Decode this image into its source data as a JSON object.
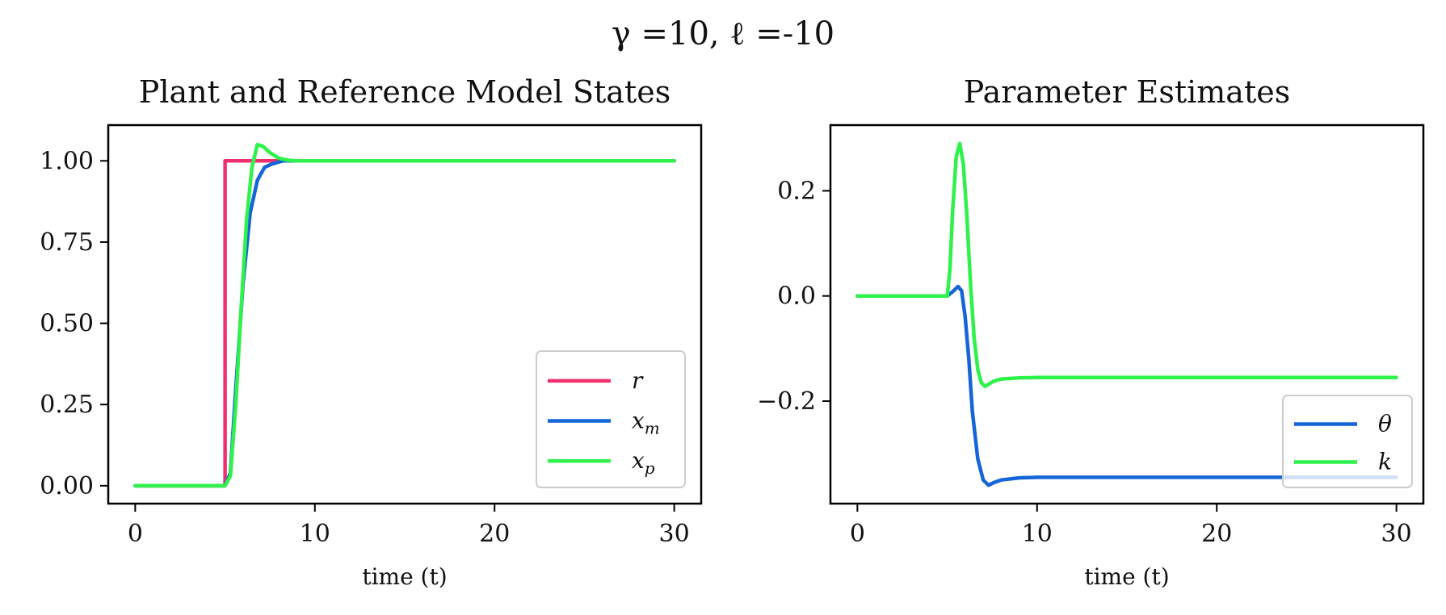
{
  "figure": {
    "suptitle": "γ =10, ℓ =-10"
  },
  "chart_data": [
    {
      "type": "line",
      "title": "Plant and Reference Model States",
      "xlabel": "time (t)",
      "ylabel": "",
      "xlim": [
        -1.5,
        31.5
      ],
      "ylim": [
        -0.055,
        1.11
      ],
      "xticks": [
        0,
        10,
        20,
        30
      ],
      "xtick_labels": [
        "0",
        "10",
        "20",
        "30"
      ],
      "yticks": [
        0.0,
        0.25,
        0.5,
        0.75,
        1.0
      ],
      "ytick_labels": [
        "0.00",
        "0.25",
        "0.50",
        "0.75",
        "1.00"
      ],
      "grid": false,
      "legend_position": "lower-right",
      "series": [
        {
          "name": "r",
          "color": "#f0306e",
          "x": [
            0,
            5,
            5,
            30
          ],
          "y": [
            0,
            0,
            1,
            1
          ]
        },
        {
          "name": "x_m",
          "color": "#1565d8",
          "x": [
            0,
            5,
            5.3,
            5.6,
            6.0,
            6.4,
            6.8,
            7.2,
            7.6,
            8.2,
            9.0,
            10,
            15,
            20,
            25,
            30
          ],
          "y": [
            0,
            0,
            0.04,
            0.3,
            0.62,
            0.84,
            0.94,
            0.98,
            0.99,
            1.0,
            1.0,
            1.0,
            1.0,
            1.0,
            1.0,
            1.0
          ]
        },
        {
          "name": "x_p",
          "color": "#2ef24a",
          "x": [
            0,
            5,
            5.3,
            5.6,
            5.9,
            6.2,
            6.5,
            6.8,
            7.1,
            7.5,
            8.0,
            8.5,
            9.0,
            10,
            15,
            20,
            25,
            30
          ],
          "y": [
            0,
            0,
            0.03,
            0.25,
            0.55,
            0.82,
            0.98,
            1.05,
            1.045,
            1.025,
            1.008,
            1.002,
            1.0,
            1.0,
            1.0,
            1.0,
            1.0,
            1.0
          ]
        }
      ]
    },
    {
      "type": "line",
      "title": "Parameter Estimates",
      "xlabel": "time (t)",
      "ylabel": "",
      "xlim": [
        -1.5,
        31.5
      ],
      "ylim": [
        -0.395,
        0.325
      ],
      "xticks": [
        0,
        10,
        20,
        30
      ],
      "xtick_labels": [
        "0",
        "10",
        "20",
        "30"
      ],
      "yticks": [
        -0.2,
        0.0,
        0.2
      ],
      "ytick_labels": [
        "−0.2",
        "0.0",
        "0.2"
      ],
      "grid": false,
      "legend_position": "lower-right",
      "series": [
        {
          "name": "θ",
          "color": "#1565d8",
          "x": [
            0,
            5,
            5.3,
            5.6,
            5.8,
            6.0,
            6.2,
            6.4,
            6.7,
            7.0,
            7.3,
            7.6,
            8.0,
            9.0,
            10,
            15,
            20,
            25,
            30
          ],
          "y": [
            0,
            0,
            0.008,
            0.018,
            0.01,
            -0.04,
            -0.12,
            -0.22,
            -0.31,
            -0.35,
            -0.36,
            -0.355,
            -0.35,
            -0.346,
            -0.345,
            -0.345,
            -0.345,
            -0.345,
            -0.345
          ]
        },
        {
          "name": "k",
          "color": "#2ef24a",
          "x": [
            0,
            5,
            5.15,
            5.3,
            5.5,
            5.7,
            5.9,
            6.1,
            6.3,
            6.5,
            6.7,
            6.9,
            7.1,
            7.3,
            7.6,
            8.0,
            9.0,
            10,
            15,
            20,
            25,
            30
          ],
          "y": [
            0,
            0,
            0.05,
            0.16,
            0.265,
            0.29,
            0.25,
            0.15,
            0.02,
            -0.08,
            -0.14,
            -0.165,
            -0.172,
            -0.168,
            -0.162,
            -0.158,
            -0.156,
            -0.155,
            -0.155,
            -0.155,
            -0.155,
            -0.155
          ]
        }
      ]
    }
  ]
}
